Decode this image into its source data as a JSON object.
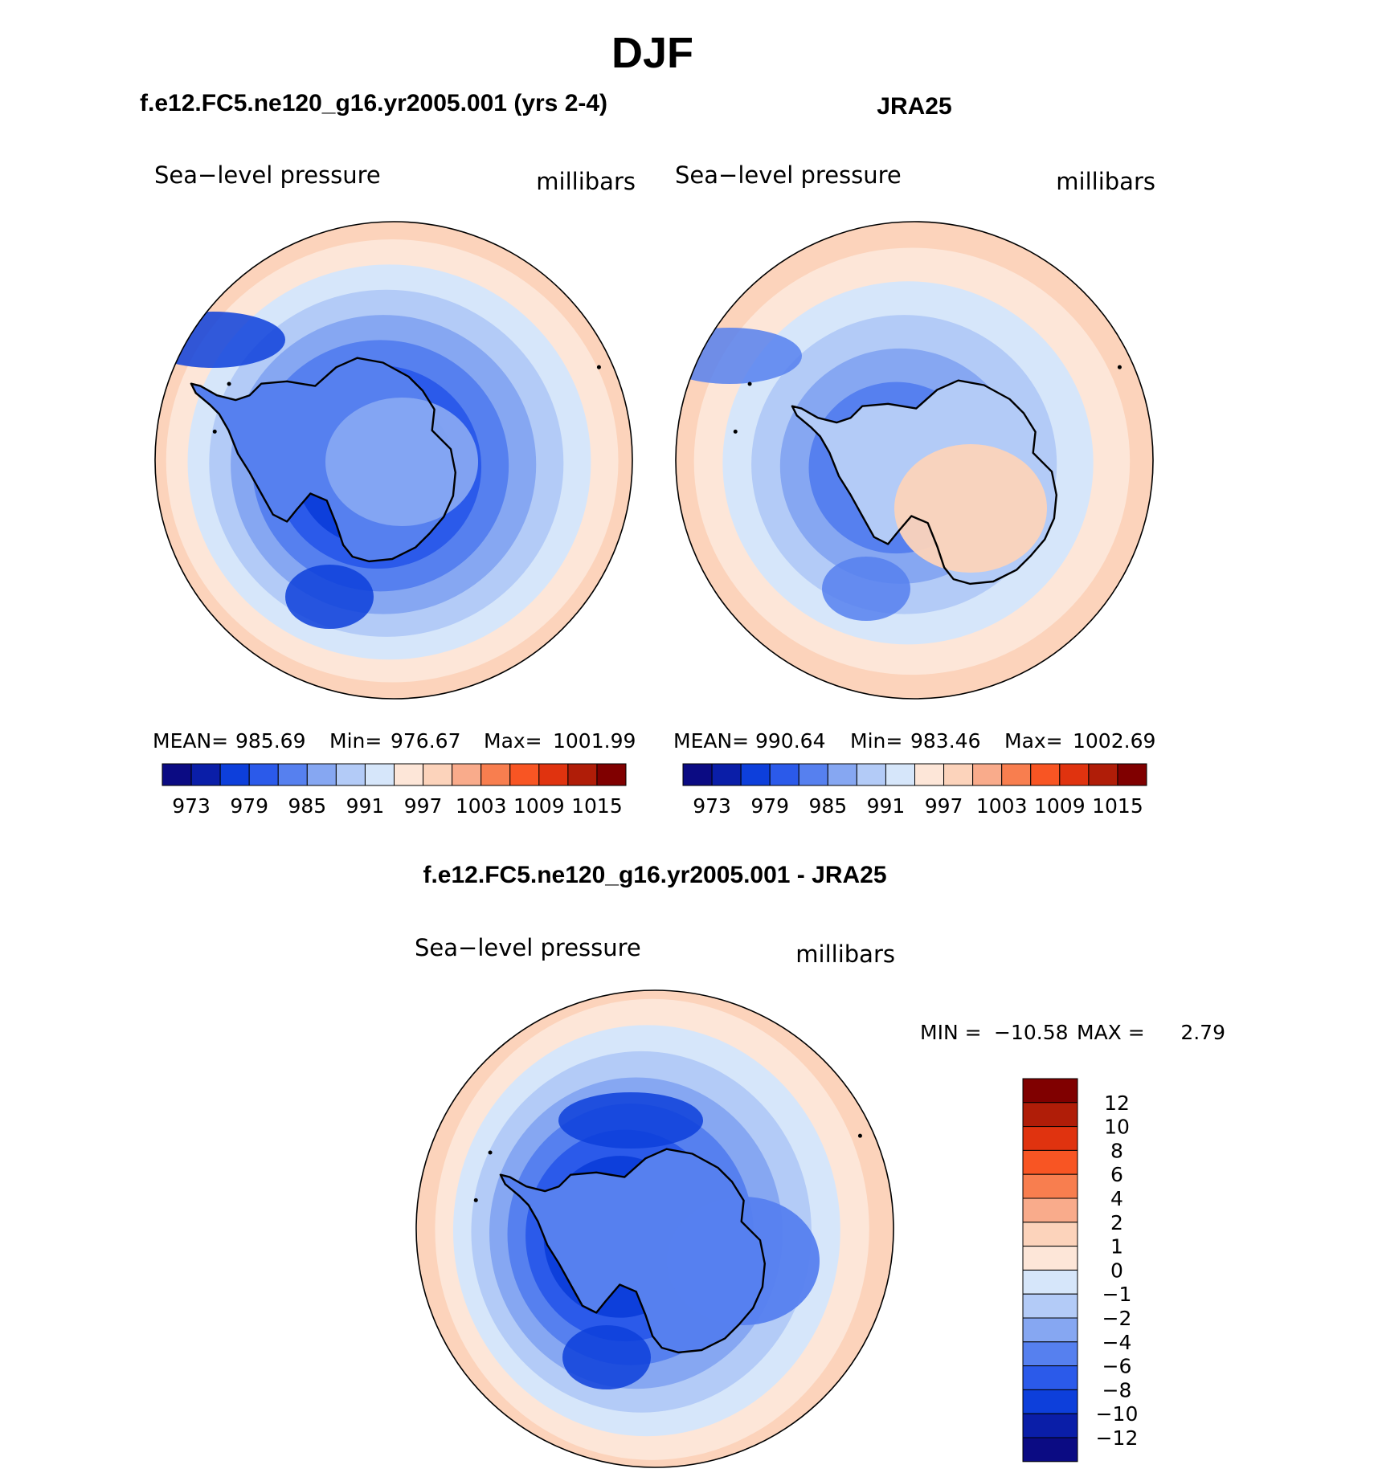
{
  "page": {
    "title": "DJF",
    "diff_title": "f.e12.FC5.ne120_g16.yr2005.001 - JRA25"
  },
  "chart_data": [
    {
      "type": "heatmap",
      "panel_title": "f.e12.FC5.ne120_g16.yr2005.001 (yrs 2-4)",
      "title_left": "Sea−level pressure",
      "title_right": "millibars",
      "stats": {
        "mean_label": "MEAN=",
        "mean": "985.69",
        "min_label": "Min=",
        "min": "976.67",
        "max_label": "Max=",
        "max": "1001.99"
      },
      "legend_labels": [
        "973",
        "979",
        "985",
        "991",
        "997",
        "1003",
        "1009",
        "1015"
      ],
      "levels": [
        {
          "value": 1000,
          "color": "#fcd3bb"
        },
        {
          "value": 996,
          "color": "#fde6d8"
        },
        {
          "value": 993,
          "color": "#d6e6fa"
        },
        {
          "value": 990,
          "color": "#b3cbf7"
        },
        {
          "value": 987,
          "color": "#86a7f2"
        },
        {
          "value": 984,
          "color": "#5680ef"
        },
        {
          "value": 981,
          "color": "#2b5aea"
        },
        {
          "value": 978,
          "color": "#0d3fdb"
        }
      ]
    },
    {
      "type": "heatmap",
      "panel_title": "JRA25",
      "title_left": "Sea−level pressure",
      "title_right": "millibars",
      "stats": {
        "mean_label": "MEAN=",
        "mean": "990.64",
        "min_label": "Min=",
        "min": "983.46",
        "max_label": "Max=",
        "max": "1002.69"
      },
      "legend_labels": [
        "973",
        "979",
        "985",
        "991",
        "997",
        "1003",
        "1009",
        "1015"
      ],
      "levels": [
        {
          "value": 1000,
          "color": "#fcd3bb"
        },
        {
          "value": 997,
          "color": "#fde6d8"
        },
        {
          "value": 994,
          "color": "#d6e6fa"
        },
        {
          "value": 991,
          "color": "#b3cbf7"
        },
        {
          "value": 988,
          "color": "#86a7f2"
        },
        {
          "value": 985,
          "color": "#5680ef"
        }
      ]
    },
    {
      "type": "heatmap",
      "panel_title": "f.e12.FC5.ne120_g16.yr2005.001 - JRA25",
      "title_left": "Sea−level pressure",
      "title_right": "millibars",
      "stats": {
        "min_label": "MIN =",
        "min": "−10.58",
        "max_label": "MAX =",
        "max": "2.79"
      },
      "legend_labels": [
        "12",
        "10",
        "8",
        "6",
        "4",
        "2",
        "1",
        "0",
        "−1",
        "−2",
        "−4",
        "−6",
        "−8",
        "−10",
        "−12"
      ],
      "levels": [
        {
          "value": 2,
          "color": "#fcd3bb"
        },
        {
          "value": 0,
          "color": "#fde6d8"
        },
        {
          "value": -1,
          "color": "#d6e6fa"
        },
        {
          "value": -2,
          "color": "#b3cbf7"
        },
        {
          "value": -4,
          "color": "#86a7f2"
        },
        {
          "value": -6,
          "color": "#5680ef"
        },
        {
          "value": -8,
          "color": "#2b5aea"
        },
        {
          "value": -10,
          "color": "#0d3fdb"
        }
      ]
    }
  ],
  "colors": {
    "abs_legend": [
      "#0b0b83",
      "#0a1ea8",
      "#0d3fdb",
      "#2b5aea",
      "#5680ef",
      "#86a7f2",
      "#b3cbf7",
      "#d6e6fa",
      "#fde6d8",
      "#fcd3bb",
      "#f9ab8b",
      "#f87e4f",
      "#f85523",
      "#e0330f",
      "#b01d08",
      "#800000"
    ],
    "diff_legend": [
      "#800000",
      "#b01d08",
      "#e0330f",
      "#f85523",
      "#f87e4f",
      "#f9ab8b",
      "#fcd3bb",
      "#fde6d8",
      "#d6e6fa",
      "#b3cbf7",
      "#86a7f2",
      "#5680ef",
      "#2b5aea",
      "#0d3fdb",
      "#0a1ea8",
      "#0b0b83"
    ]
  }
}
